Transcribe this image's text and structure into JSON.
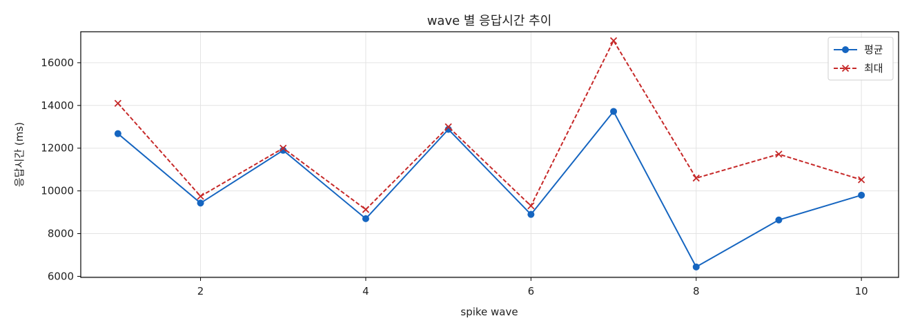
{
  "chart_data": {
    "type": "line",
    "title": "wave 별 응답시간 추이",
    "xlabel": "spike wave",
    "ylabel": "응답시간 (ms)",
    "x": [
      1,
      2,
      3,
      4,
      5,
      6,
      7,
      8,
      9,
      10
    ],
    "xlim": [
      0.55,
      10.45
    ],
    "ylim": [
      5950,
      17450
    ],
    "xticks": [
      2,
      4,
      6,
      8,
      10
    ],
    "yticks": [
      6000,
      8000,
      10000,
      12000,
      14000,
      16000
    ],
    "grid": true,
    "legend_position": "top-right",
    "series": [
      {
        "name": "평균",
        "color": "#1565c0",
        "line_style": "solid",
        "marker": "circle",
        "values": [
          12680,
          9430,
          11900,
          8700,
          12880,
          8900,
          13720,
          6440,
          8640,
          9800
        ]
      },
      {
        "name": "최대",
        "color": "#c62828",
        "line_style": "dashed",
        "marker": "x",
        "values": [
          14100,
          9750,
          12000,
          9130,
          13000,
          9300,
          17030,
          10600,
          11720,
          10520
        ]
      }
    ]
  }
}
